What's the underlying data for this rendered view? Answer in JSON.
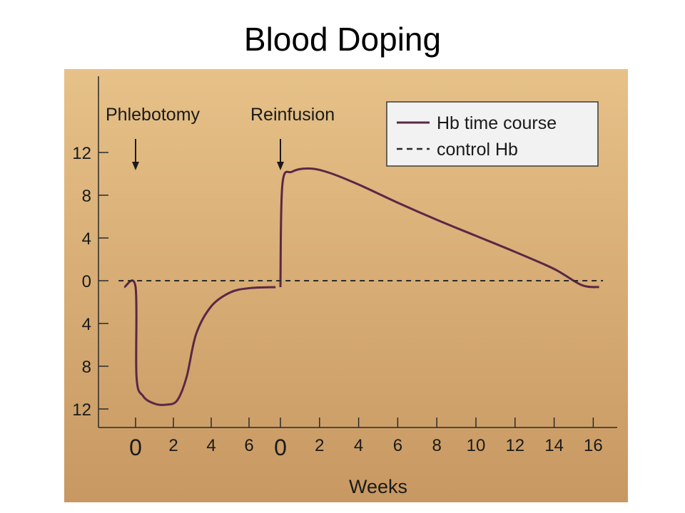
{
  "slide": {
    "title": "Blood Doping"
  },
  "colors": {
    "background_top": "#e6c188",
    "background_bottom": "#c89862",
    "hb_line": "#5a2746",
    "control_line": "#2a2a2a",
    "legend_bg": "#f2f2f2"
  },
  "chart_data": {
    "type": "line",
    "title": "",
    "xlabel": "Weeks",
    "ylabel": "",
    "x_segments": [
      {
        "ticks": [
          "0",
          "2",
          "4",
          "6"
        ]
      },
      {
        "ticks": [
          "0",
          "2",
          "4",
          "6",
          "8",
          "10",
          "12",
          "14",
          "16"
        ]
      }
    ],
    "y_ticks": [
      "12",
      "8",
      "4",
      "0",
      "4",
      "8",
      "12"
    ],
    "y_tick_values": [
      12,
      8,
      4,
      0,
      -4,
      -8,
      -12
    ],
    "ylim": [
      -12,
      12
    ],
    "grid": false,
    "legend_position": "top-right",
    "legend": [
      {
        "label": "Hb time course",
        "style": "solid"
      },
      {
        "label": "control Hb",
        "style": "dashed"
      }
    ],
    "annotations": [
      {
        "text": "Phlebotomy",
        "segment": 0,
        "week": 0
      },
      {
        "text": "Reinfusion",
        "segment": 1,
        "week": 0
      }
    ],
    "series": [
      {
        "name": "Hb time course",
        "segment_points": [
          [
            {
              "s": 0,
              "x": -0.6,
              "y": -0.6
            },
            {
              "s": 0,
              "x": 0,
              "y": -0.6
            },
            {
              "s": 0,
              "x": 0.05,
              "y": -9
            },
            {
              "s": 0,
              "x": 0.4,
              "y": -10.8
            },
            {
              "s": 0,
              "x": 1,
              "y": -11.5
            },
            {
              "s": 0,
              "x": 1.6,
              "y": -11.6
            },
            {
              "s": 0,
              "x": 2.2,
              "y": -11.2
            },
            {
              "s": 0,
              "x": 2.7,
              "y": -9
            },
            {
              "s": 0,
              "x": 3.2,
              "y": -5
            },
            {
              "s": 0,
              "x": 4,
              "y": -2.4
            },
            {
              "s": 0,
              "x": 5,
              "y": -1.1
            },
            {
              "s": 0,
              "x": 6,
              "y": -0.7
            },
            {
              "s": 0,
              "x": 7.4,
              "y": -0.6
            }
          ],
          [
            {
              "s": 1,
              "x": 0,
              "y": -0.6
            },
            {
              "s": 1,
              "x": 0.1,
              "y": 9
            },
            {
              "s": 1,
              "x": 0.6,
              "y": 10.2
            },
            {
              "s": 1,
              "x": 1.5,
              "y": 10.5
            },
            {
              "s": 1,
              "x": 2.5,
              "y": 10.1
            },
            {
              "s": 1,
              "x": 4,
              "y": 9
            },
            {
              "s": 1,
              "x": 6,
              "y": 7.3
            },
            {
              "s": 1,
              "x": 8,
              "y": 5.7
            },
            {
              "s": 1,
              "x": 10,
              "y": 4.2
            },
            {
              "s": 1,
              "x": 12,
              "y": 2.7
            },
            {
              "s": 1,
              "x": 14,
              "y": 1.1
            },
            {
              "s": 1,
              "x": 15.4,
              "y": -0.4
            },
            {
              "s": 1,
              "x": 16.3,
              "y": -0.6
            }
          ]
        ]
      },
      {
        "name": "control Hb",
        "segment_points": [
          [
            {
              "s": 0,
              "x": -0.9,
              "y": 0
            },
            {
              "s": 1,
              "x": 16.5,
              "y": 0
            }
          ]
        ]
      }
    ]
  }
}
